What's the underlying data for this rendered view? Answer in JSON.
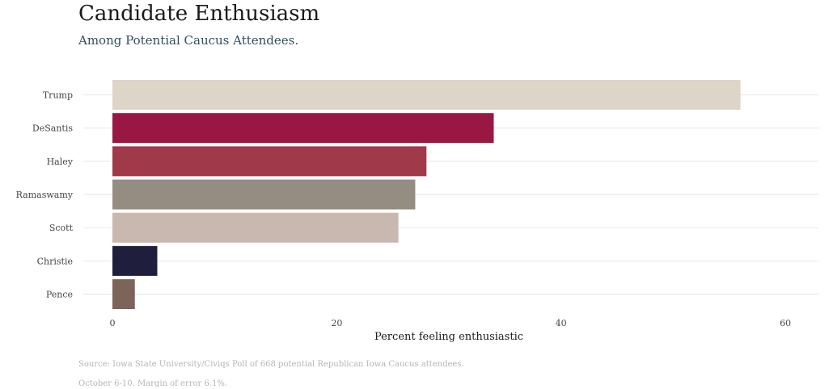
{
  "chart_data": {
    "type": "bar",
    "orientation": "horizontal",
    "title": "Candidate Enthusiasm",
    "subtitle": "Among Potential Caucus Attendees.",
    "xlabel": "Percent feeling enthusiastic",
    "ylabel": "",
    "xlim": [
      0,
      63
    ],
    "xticks": [
      0,
      20,
      40,
      60
    ],
    "grid": "horizontal",
    "legend": "none",
    "categories": [
      "Trump",
      "DeSantis",
      "Haley",
      "Ramaswamy",
      "Scott",
      "Christie",
      "Pence"
    ],
    "values": [
      56,
      34,
      28,
      27,
      25.5,
      4,
      2
    ],
    "colors": [
      "#ddd5c8",
      "#991843",
      "#a0394a",
      "#968d82",
      "#c9b8b0",
      "#1f1f3d",
      "#7d645a"
    ],
    "caption_lines": [
      "Source: Iowa State University/Civiqs Poll of 668 potential Republican Iowa Caucus attendees.",
      "October 6-10.  Margin of error 6.1%."
    ]
  }
}
